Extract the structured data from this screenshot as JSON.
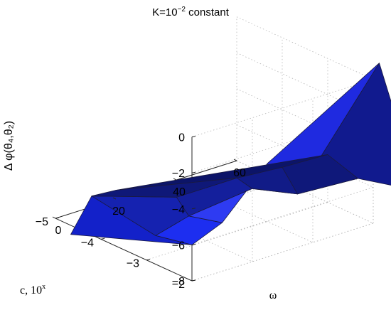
{
  "chart_data": {
    "type": "surface",
    "title": "K=10",
    "title_superscript": "−2",
    "title_suffix": " constant",
    "xlabel": "ω",
    "ylabel_main": "c, 10",
    "ylabel_superscript": "x",
    "zlabel": "Δ φ(θ₄,θ₂)",
    "x_ticks": [
      "0",
      "20",
      "40",
      "60"
    ],
    "y_ticks": [
      "−2",
      "−3",
      "−4",
      "−5"
    ],
    "z_ticks": [
      "0",
      "−2",
      "−4",
      "−6",
      "−8"
    ],
    "xlim": [
      0,
      60
    ],
    "ylim": [
      -5,
      -2
    ],
    "zlim": [
      -8,
      0
    ],
    "grid": true,
    "colormap": "blue",
    "facets": [
      {
        "vertices": [
          [
            10,
            -2,
            -5.3
          ],
          [
            0,
            -2,
            -6.0
          ],
          [
            3,
            -3,
            -6.8
          ],
          [
            14,
            -3,
            -6.3
          ]
        ],
        "fill": "#1d2ef0"
      },
      {
        "vertices": [
          [
            10,
            -2,
            -5.3
          ],
          [
            14,
            -3,
            -6.3
          ],
          [
            35,
            -3,
            -5.9
          ],
          [
            25,
            -2,
            -2.8
          ]
        ],
        "fill": "#2e3bf2"
      },
      {
        "vertices": [
          [
            25,
            -2,
            -2.8
          ],
          [
            35,
            -3,
            -5.9
          ],
          [
            50,
            -3,
            -7.0
          ],
          [
            62,
            -2,
            0.8
          ]
        ],
        "fill": "#1f2ae0"
      },
      {
        "vertices": [
          [
            62,
            -2,
            0.8
          ],
          [
            50,
            -3,
            -7.0
          ],
          [
            70,
            -3,
            -7.2
          ],
          [
            75,
            -2,
            -7.0
          ]
        ],
        "fill": "#111a8e"
      },
      {
        "vertices": [
          [
            0,
            -2,
            -6.0
          ],
          [
            3,
            -3,
            -6.8
          ],
          [
            12,
            -5,
            -7.4
          ],
          [
            -10,
            -4,
            -7.2
          ]
        ],
        "fill": "#1321c9"
      },
      {
        "vertices": [
          [
            3,
            -3,
            -6.8
          ],
          [
            14,
            -3,
            -6.3
          ],
          [
            25,
            -4,
            -7.0
          ],
          [
            12,
            -5,
            -7.4
          ]
        ],
        "fill": "#1522b0"
      },
      {
        "vertices": [
          [
            14,
            -3,
            -6.3
          ],
          [
            35,
            -3,
            -5.9
          ],
          [
            45,
            -4,
            -7.0
          ],
          [
            25,
            -4,
            -7.0
          ]
        ],
        "fill": "#141f9c"
      },
      {
        "vertices": [
          [
            35,
            -3,
            -5.9
          ],
          [
            50,
            -3,
            -7.0
          ],
          [
            60,
            -4,
            -7.2
          ],
          [
            45,
            -4,
            -7.0
          ]
        ],
        "fill": "#111b87"
      },
      {
        "vertices": [
          [
            50,
            -3,
            -7.0
          ],
          [
            70,
            -3,
            -7.2
          ],
          [
            75,
            -4,
            -7.3
          ],
          [
            60,
            -4,
            -7.2
          ]
        ],
        "fill": "#0f187a"
      },
      {
        "vertices": [
          [
            12,
            -5,
            -7.4
          ],
          [
            25,
            -4,
            -7.0
          ],
          [
            45,
            -4,
            -7.0
          ],
          [
            20,
            -5,
            -7.5
          ]
        ],
        "fill": "#0f1878"
      },
      {
        "vertices": [
          [
            45,
            -4,
            -7.0
          ],
          [
            60,
            -4,
            -7.2
          ],
          [
            75,
            -4,
            -7.3
          ],
          [
            20,
            -5,
            -7.5
          ]
        ],
        "fill": "#0c1468"
      }
    ]
  }
}
